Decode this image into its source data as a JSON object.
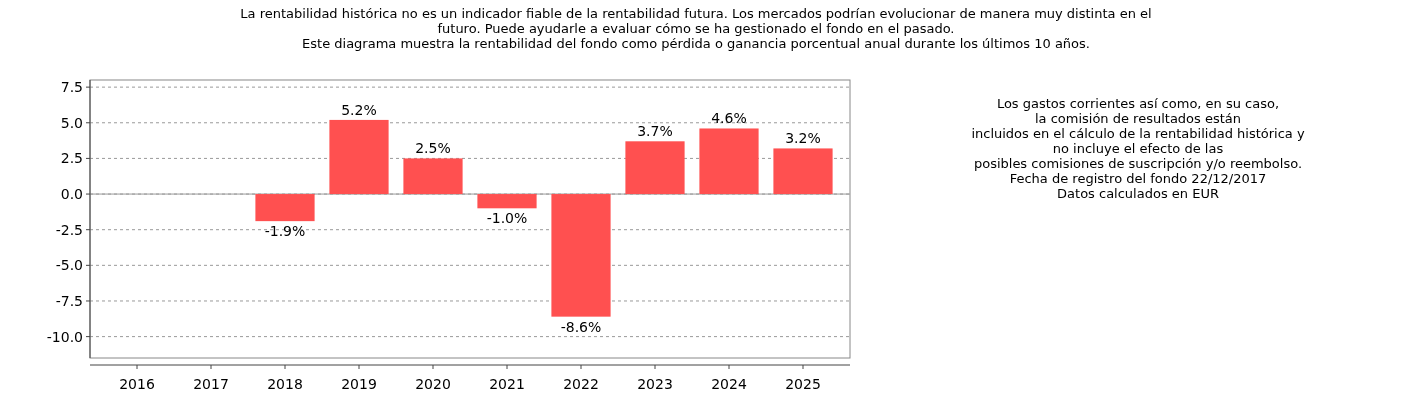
{
  "chart_data": {
    "type": "bar",
    "title": "La rentabilidad histórica no es un indicador fiable de la rentabilidad futura. Los mercados podrían evolucionar de manera muy distinta en el\nfuturo. Puede ayudarle a evaluar cómo se ha gestionado el fondo en el pasado.\nEste diagrama muestra la rentabilidad del fondo como pérdida o ganancia porcentual anual durante los últimos 10 años.",
    "categories": [
      "2016",
      "2017",
      "2018",
      "2019",
      "2020",
      "2021",
      "2022",
      "2023",
      "2024",
      "2025"
    ],
    "values": [
      null,
      null,
      -1.9,
      5.2,
      2.5,
      -1.0,
      -8.6,
      3.7,
      4.6,
      3.2
    ],
    "color": "#ff5050",
    "ylim": [
      -11.5,
      8
    ],
    "yticks": [
      {
        "value": 7.5,
        "label": "7.5"
      },
      {
        "value": 5,
        "label": "5.0"
      },
      {
        "value": 2.5,
        "label": "2.5"
      },
      {
        "value": 0,
        "label": "0.0"
      },
      {
        "value": -2.5,
        "label": "-2.5"
      },
      {
        "value": -5,
        "label": "-5.0"
      },
      {
        "value": -7.5,
        "label": "-7.5"
      },
      {
        "value": -10,
        "label": "-10.0"
      }
    ],
    "grid": "y",
    "value_labels": [
      null,
      null,
      "-1.9%",
      "5.2%",
      "2.5%",
      "-1.0%",
      "-8.6%",
      "3.7%",
      "4.6%",
      "3.2%"
    ],
    "ref_lines": [
      {
        "axis": "y",
        "value": 0,
        "label": null,
        "color": "#999999",
        "line_style": "solid"
      }
    ],
    "annotations": [
      "Los gastos corrientes así como, en su caso,\nla comisión de resultados están\nincluidos en el cálculo de la rentabilidad histórica y\nno incluye el efecto de las\nposibles comisiones de suscripción y/o reembolso.\nFecha de registro del fondo 22/12/2017\nDatos calculados en EUR"
    ]
  }
}
